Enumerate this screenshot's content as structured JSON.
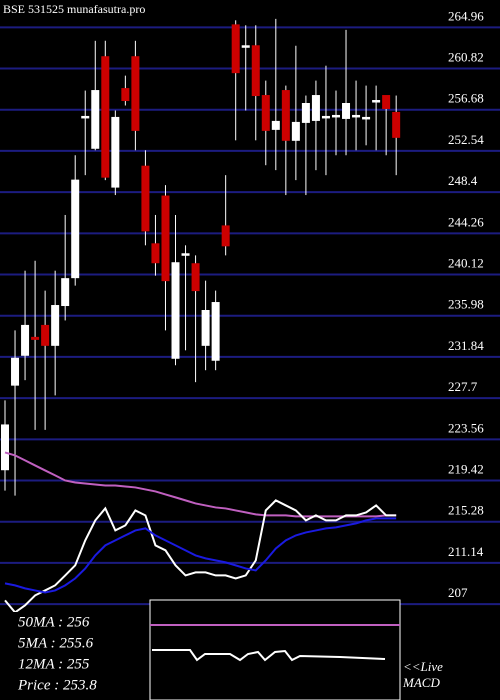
{
  "chart_data": {
    "type": "candlestick",
    "title": "BSE 531525 munafasutra.pro",
    "ylim": [
      204.5,
      266.6
    ],
    "yticks": [
      264.96,
      260.82,
      256.68,
      252.54,
      248.4,
      244.26,
      240.12,
      235.98,
      231.84,
      227.7,
      223.56,
      219.42,
      215.28,
      211.14,
      207
    ],
    "grid": true,
    "up_color": "#ffffff",
    "down_color": "#cc0000",
    "grid_color": "#1c1c80",
    "open": [
      219.5,
      228,
      231,
      232.8,
      234,
      232,
      236,
      238.8,
      255,
      251.8,
      261,
      247.9,
      257.8,
      261,
      250,
      242.2,
      247,
      230.7,
      241.2,
      240.2,
      232,
      230.5,
      244,
      264.2,
      262.1,
      262.1,
      257.1,
      253.7,
      257.6,
      252.6,
      254.4,
      254.6,
      255,
      255.1,
      254.8,
      255.1,
      254.9,
      256.6,
      257.1,
      255.4
    ],
    "high": [
      226.47,
      233.5,
      239.5,
      240.5,
      237.5,
      239.5,
      245.1,
      251.1,
      257.6,
      262.6,
      262.6,
      255.6,
      259.1,
      262.6,
      251.6,
      245.1,
      248.1,
      245.1,
      242.05,
      241.04,
      238.5,
      237.5,
      249.1,
      264.66,
      264.16,
      264.16,
      258.6,
      264.8,
      258.1,
      262.1,
      257.1,
      258.6,
      260.1,
      257.6,
      263.7,
      258.6,
      258.1,
      258.1,
      257.1,
      257.1
    ],
    "low": [
      217.4,
      216.9,
      228.5,
      223.5,
      223.5,
      226.97,
      234.5,
      238,
      249.1,
      251.6,
      248.6,
      247.1,
      256.1,
      251.6,
      242.05,
      239,
      233.5,
      230,
      231.5,
      228.3,
      229.5,
      229.5,
      241.04,
      252.6,
      255.6,
      252.6,
      250.1,
      249.6,
      247.1,
      248.6,
      247.1,
      249.6,
      249.1,
      251.1,
      251.1,
      251.6,
      252.1,
      251.6,
      251.1,
      249.1
    ],
    "close": [
      224,
      230.7,
      234,
      232.6,
      232,
      236,
      238.7,
      248.6,
      255,
      257.6,
      248.9,
      254.9,
      256.6,
      253.6,
      243.5,
      240.3,
      238.5,
      240.3,
      241.2,
      237.5,
      235.5,
      236.3,
      242,
      259.4,
      262.1,
      257.1,
      253.6,
      254.5,
      252.6,
      254.4,
      256.3,
      257.1,
      255,
      255.1,
      256.3,
      255.1,
      254.9,
      256.6,
      255.8,
      252.9
    ],
    "series": [
      {
        "color": "#c060c0",
        "values": [
          221.24,
          220.94,
          220.44,
          219.93,
          219.43,
          218.93,
          218.42,
          218.22,
          218.12,
          218.02,
          217.92,
          217.92,
          217.82,
          217.72,
          217.52,
          217.32,
          217.02,
          216.72,
          216.42,
          216.11,
          215.91,
          215.71,
          215.61,
          215.41,
          215.21,
          215.01,
          214.91,
          214.91,
          214.91,
          214.81,
          214.81,
          214.81,
          214.81,
          214.81,
          214.81,
          214.81,
          214.81,
          214.81,
          214.91,
          214.91
        ]
      },
      {
        "color": "#ffffff",
        "values": [
          206.37,
          205.16,
          205.87,
          206.87,
          207.37,
          207.88,
          208.88,
          209.89,
          212.4,
          214.41,
          215.62,
          213.4,
          213.91,
          215.41,
          214.91,
          211.9,
          211.4,
          209.89,
          208.88,
          209.18,
          209.18,
          208.88,
          208.88,
          208.58,
          208.88,
          210.39,
          215.41,
          216.42,
          215.91,
          215.41,
          214.41,
          214.91,
          214.41,
          214.41,
          214.91,
          214.91,
          215.21,
          215.91,
          214.91,
          214.91
        ]
      },
      {
        "color": "#1a1ae0",
        "values": [
          208.08,
          207.88,
          207.58,
          207.37,
          207.17,
          207.37,
          207.88,
          208.58,
          209.58,
          210.89,
          211.9,
          212.4,
          212.9,
          213.4,
          213.61,
          212.9,
          212.4,
          211.9,
          211.4,
          210.89,
          210.59,
          210.39,
          210.19,
          209.89,
          209.58,
          209.38,
          210.39,
          211.59,
          212.4,
          212.9,
          213.2,
          213.4,
          213.61,
          213.71,
          213.91,
          214.11,
          214.41,
          214.61,
          214.61,
          214.61
        ]
      }
    ],
    "legend": [
      "50MA : 256",
      "5MA : 255.6",
      "12MA : 255",
      "Price   : 253.8"
    ],
    "annotations": [
      "<<Live",
      "MACD"
    ]
  }
}
